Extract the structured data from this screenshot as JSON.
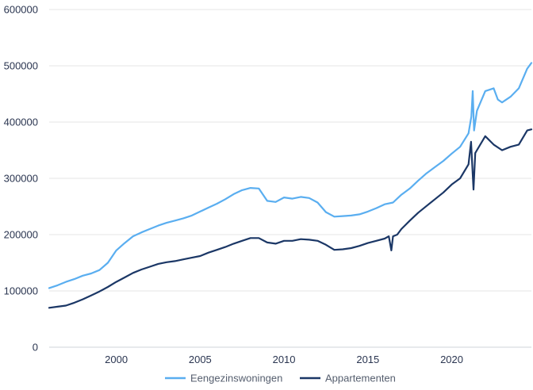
{
  "chart_data": {
    "type": "line",
    "title": "",
    "xlabel": "",
    "ylabel": "",
    "x_range": [
      1996,
      2024.75
    ],
    "ylim": [
      0,
      600000
    ],
    "y_ticks": [
      0,
      100000,
      200000,
      300000,
      400000,
      500000,
      600000
    ],
    "y_tick_labels": [
      "0",
      "100000",
      "200000",
      "300000",
      "400000",
      "500000",
      "600000"
    ],
    "x_ticks": [
      2000,
      2005,
      2010,
      2015,
      2020
    ],
    "x_tick_labels": [
      "2000",
      "2005",
      "2010",
      "2015",
      "2020"
    ],
    "grid": "horizontal",
    "legend_position": "bottom",
    "series": [
      {
        "name": "Eengezinswoningen",
        "color": "#5aaef0",
        "x": [
          1996,
          1996.5,
          1997,
          1997.5,
          1998,
          1998.5,
          1999,
          1999.5,
          2000,
          2000.5,
          2001,
          2001.5,
          2002,
          2002.5,
          2003,
          2003.5,
          2004,
          2004.5,
          2005,
          2005.5,
          2006,
          2006.5,
          2007,
          2007.5,
          2008,
          2008.5,
          2009,
          2009.5,
          2010,
          2010.5,
          2011,
          2011.5,
          2012,
          2012.5,
          2013,
          2013.5,
          2014,
          2014.5,
          2015,
          2015.5,
          2016,
          2016.5,
          2017,
          2017.5,
          2018,
          2018.5,
          2019,
          2019.5,
          2020,
          2020.5,
          2021,
          2021.17,
          2021.25,
          2021.33,
          2021.5,
          2022,
          2022.5,
          2022.75,
          2023,
          2023.5,
          2024,
          2024.5,
          2024.75
        ],
        "values": [
          105000,
          110000,
          116000,
          121000,
          127000,
          131000,
          137000,
          150000,
          172000,
          185000,
          197000,
          204000,
          210000,
          216000,
          221000,
          225000,
          229000,
          234000,
          241000,
          248000,
          255000,
          263000,
          272000,
          279000,
          283000,
          282000,
          260000,
          258000,
          266000,
          264000,
          267000,
          265000,
          257000,
          240000,
          232000,
          233000,
          234000,
          236000,
          241000,
          247000,
          254000,
          257000,
          271000,
          282000,
          296000,
          309000,
          320000,
          331000,
          344000,
          356000,
          380000,
          410000,
          455000,
          385000,
          420000,
          455000,
          460000,
          440000,
          435000,
          445000,
          460000,
          495000,
          505000
        ]
      },
      {
        "name": "Appartementen",
        "color": "#1b3766",
        "x": [
          1996,
          1996.5,
          1997,
          1997.5,
          1998,
          1998.5,
          1999,
          1999.5,
          2000,
          2000.5,
          2001,
          2001.5,
          2002,
          2002.5,
          2003,
          2003.5,
          2004,
          2004.5,
          2005,
          2005.5,
          2006,
          2006.5,
          2007,
          2007.5,
          2008,
          2008.5,
          2009,
          2009.5,
          2010,
          2010.5,
          2011,
          2011.5,
          2012,
          2012.5,
          2013,
          2013.5,
          2014,
          2014.5,
          2015,
          2015.5,
          2016,
          2016.25,
          2016.4,
          2016.5,
          2016.75,
          2017,
          2017.5,
          2018,
          2018.5,
          2019,
          2019.5,
          2020,
          2020.5,
          2021,
          2021.15,
          2021.3,
          2021.4,
          2021.5,
          2022,
          2022.5,
          2023,
          2023.5,
          2024,
          2024.5,
          2024.75
        ],
        "values": [
          70000,
          72000,
          74000,
          79000,
          85000,
          92000,
          99000,
          107000,
          116000,
          124000,
          132000,
          138000,
          143000,
          148000,
          151000,
          153000,
          156000,
          159000,
          162000,
          168000,
          173000,
          178000,
          184000,
          189000,
          194000,
          194000,
          186000,
          184000,
          189000,
          189000,
          192000,
          191000,
          189000,
          182000,
          173000,
          174000,
          176000,
          180000,
          185000,
          189000,
          193000,
          197000,
          172000,
          197000,
          200000,
          210000,
          225000,
          239000,
          251000,
          263000,
          275000,
          289000,
          300000,
          325000,
          365000,
          280000,
          345000,
          350000,
          375000,
          360000,
          350000,
          356000,
          360000,
          385000,
          387000
        ]
      }
    ]
  }
}
